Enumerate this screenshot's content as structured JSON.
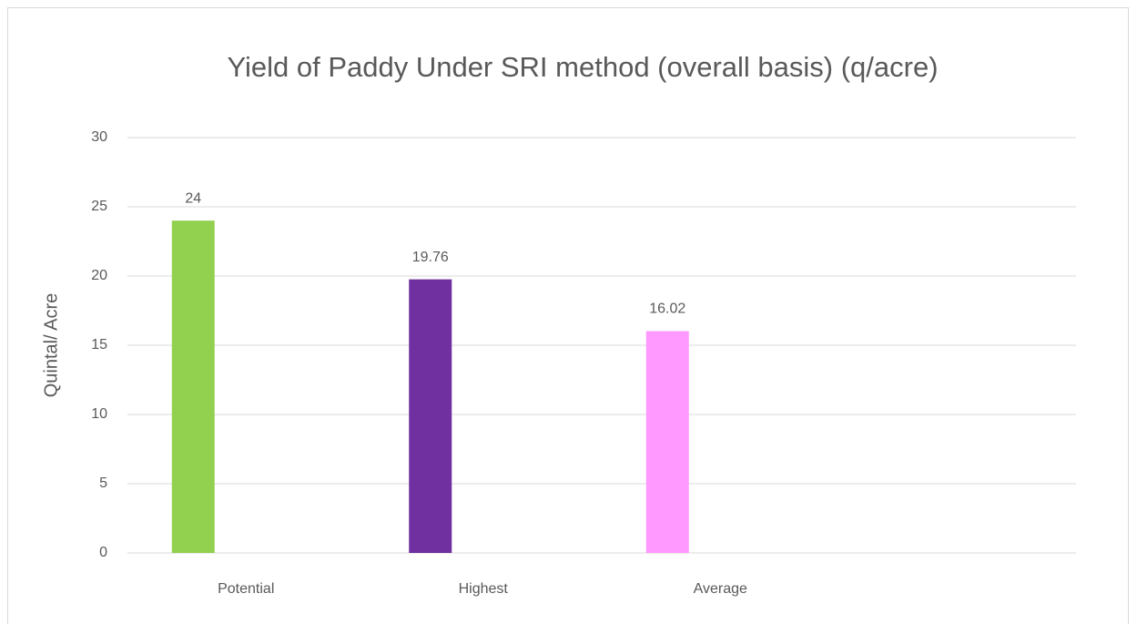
{
  "chart_data": {
    "type": "bar",
    "title": "Yield of Paddy Under SRI method (overall basis)  (q/acre)",
    "y_label": "Quintal/ Acre",
    "categories": [
      "Potential",
      "Highest",
      "Average",
      null
    ],
    "values": [
      24,
      19.76,
      16.02,
      null
    ],
    "colors": [
      "#92d050",
      "#7030a0",
      "#ff99ff",
      null
    ],
    "ylim": [
      0,
      30
    ],
    "yticks": [
      0,
      5,
      10,
      15,
      20,
      25,
      30
    ],
    "grid": true
  }
}
